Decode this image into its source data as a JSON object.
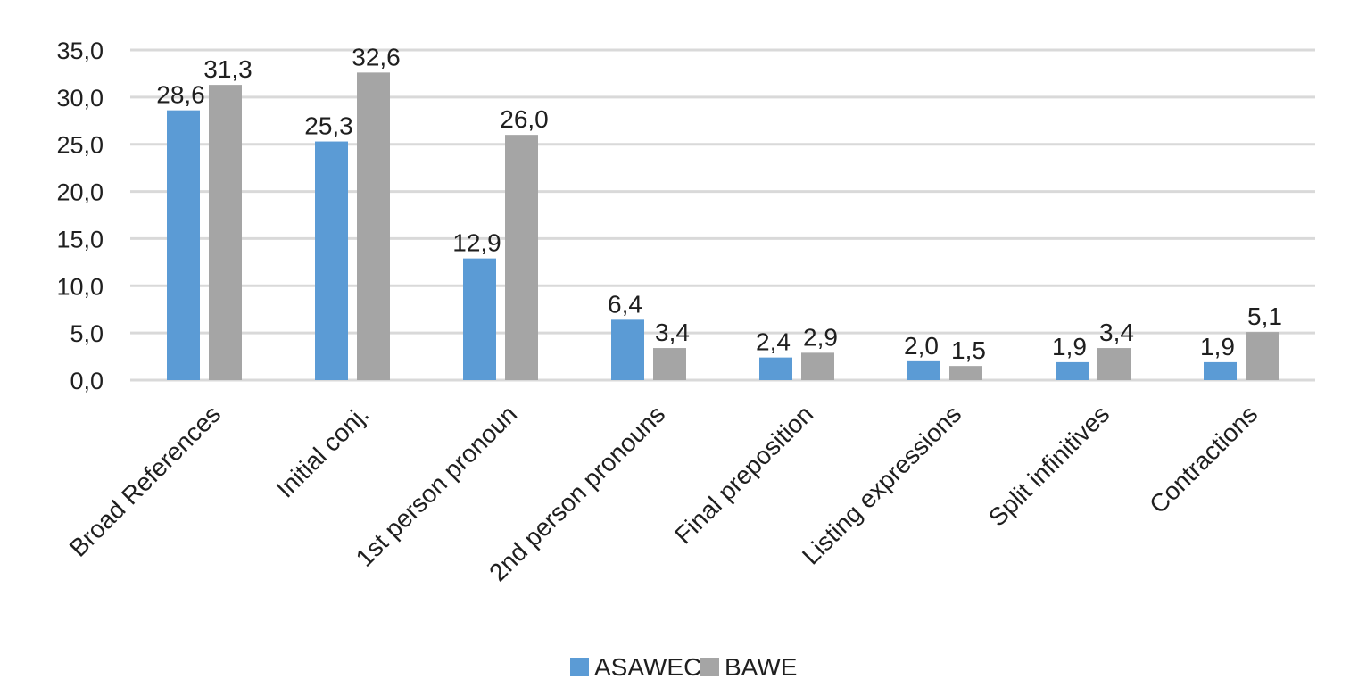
{
  "chart_data": {
    "type": "bar",
    "categories": [
      "Broad References",
      "Initial conj.",
      "1st person pronoun",
      "2nd person pronouns",
      "Final preposition",
      "Listing expressions",
      "Split infinitives",
      "Contractions"
    ],
    "series": [
      {
        "name": "ASAWEC",
        "color": "#5B9BD5",
        "values": [
          28.6,
          25.3,
          12.9,
          6.4,
          2.4,
          2.0,
          1.9,
          1.9
        ]
      },
      {
        "name": "BAWE",
        "color": "#A5A5A5",
        "values": [
          31.3,
          32.6,
          26.0,
          3.4,
          2.9,
          1.5,
          3.4,
          5.1
        ]
      }
    ],
    "data_labels": [
      [
        "28,6",
        "25,3",
        "12,9",
        "6,4",
        "2,4",
        "2,0",
        "1,9",
        "1,9"
      ],
      [
        "31,3",
        "32,6",
        "26,0",
        "3,4",
        "2,9",
        "1,5",
        "3,4",
        "5,1"
      ]
    ],
    "y_ticks": [
      "0,0",
      "5,0",
      "10,0",
      "15,0",
      "20,0",
      "25,0",
      "30,0",
      "35,0"
    ],
    "ylim": [
      0,
      35
    ],
    "grid": true,
    "legend_position": "bottom",
    "title": "",
    "xlabel": "",
    "ylabel": ""
  }
}
